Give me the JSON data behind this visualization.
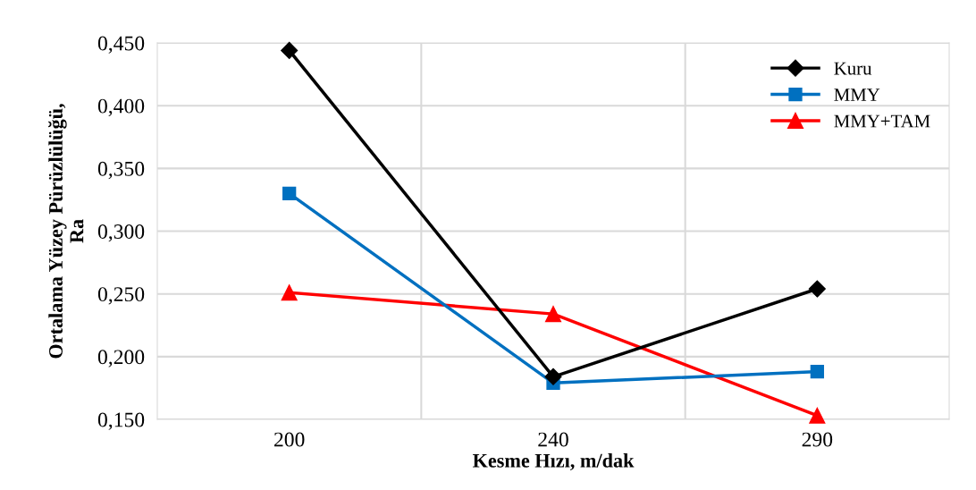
{
  "chart_data": {
    "type": "line",
    "xlabel": "Kesme Hızı, m/dak",
    "ylabel": "Ortalama Yüzey Pürüzlülüğü,\nRa",
    "categories": [
      "200",
      "240",
      "290"
    ],
    "series": [
      {
        "name": "Kuru",
        "color": "#000000",
        "marker": "diamond",
        "values": [
          0.444,
          0.184,
          0.254
        ]
      },
      {
        "name": "MMY",
        "color": "#0070c0",
        "marker": "square",
        "values": [
          0.33,
          0.179,
          0.188
        ]
      },
      {
        "name": "MMY+TAM",
        "color": "#ff0000",
        "marker": "triangle",
        "values": [
          0.251,
          0.234,
          0.153
        ]
      }
    ],
    "ylim": [
      0.15,
      0.45
    ],
    "yticks": [
      {
        "value": 0.15,
        "label": "0,150"
      },
      {
        "value": 0.2,
        "label": "0,200"
      },
      {
        "value": 0.25,
        "label": "0,250"
      },
      {
        "value": 0.3,
        "label": "0,300"
      },
      {
        "value": 0.35,
        "label": "0,350"
      },
      {
        "value": 0.4,
        "label": "0,400"
      },
      {
        "value": 0.45,
        "label": "0,450"
      }
    ],
    "grid": true,
    "legend": "top right",
    "line_style": "solid"
  }
}
